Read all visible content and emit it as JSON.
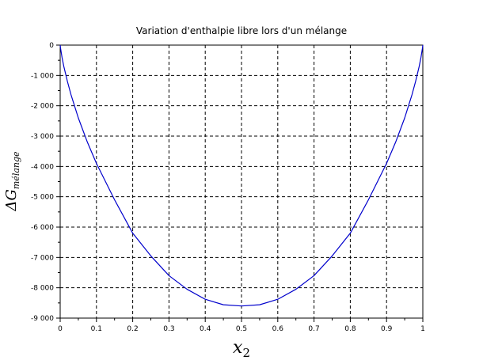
{
  "chart_data": {
    "type": "line",
    "title": "Variation d'enthalpie libre lors d'un mélange",
    "xlabel_main": "x",
    "xlabel_sub": "2",
    "ylabel_main": "ΔG",
    "ylabel_sub": "mélange",
    "xlim": [
      0,
      1
    ],
    "ylim": [
      -9000,
      0
    ],
    "x_ticks": [
      {
        "value": 0,
        "label": "0"
      },
      {
        "value": 0.1,
        "label": "0.1"
      },
      {
        "value": 0.2,
        "label": "0.2"
      },
      {
        "value": 0.3,
        "label": "0.3"
      },
      {
        "value": 0.4,
        "label": "0.4"
      },
      {
        "value": 0.5,
        "label": "0.5"
      },
      {
        "value": 0.6,
        "label": "0.6"
      },
      {
        "value": 0.7,
        "label": "0.7"
      },
      {
        "value": 0.8,
        "label": "0.8"
      },
      {
        "value": 0.9,
        "label": "0.9"
      },
      {
        "value": 1,
        "label": "1"
      }
    ],
    "y_ticks": [
      {
        "value": 0,
        "label": "0"
      },
      {
        "value": -1000,
        "label": "-1 000"
      },
      {
        "value": -2000,
        "label": "-2 000"
      },
      {
        "value": -3000,
        "label": "-3 000"
      },
      {
        "value": -4000,
        "label": "-4 000"
      },
      {
        "value": -5000,
        "label": "-5 000"
      },
      {
        "value": -6000,
        "label": "-6 000"
      },
      {
        "value": -7000,
        "label": "-7 000"
      },
      {
        "value": -8000,
        "label": "-8 000"
      },
      {
        "value": -9000,
        "label": "-9 000"
      }
    ],
    "grid": true,
    "series": [
      {
        "color": "#0000cc",
        "x": [
          0,
          0.001,
          0.005,
          0.01,
          0.02,
          0.03,
          0.05,
          0.075,
          0.1,
          0.15,
          0.2,
          0.25,
          0.3,
          0.35,
          0.4,
          0.45,
          0.5,
          0.55,
          0.6,
          0.65,
          0.7,
          0.75,
          0.8,
          0.85,
          0.9,
          0.925,
          0.95,
          0.97,
          0.98,
          0.99,
          0.995,
          0.999,
          1
        ],
        "y": [
          0,
          -100,
          -400,
          -700,
          -1200,
          -1640,
          -2400,
          -3200,
          -3900,
          -5100,
          -6200,
          -6950,
          -7600,
          -8050,
          -8380,
          -8560,
          -8600,
          -8560,
          -8380,
          -8050,
          -7600,
          -6950,
          -6200,
          -5100,
          -3900,
          -3200,
          -2400,
          -1640,
          -1200,
          -700,
          -400,
          -100,
          0
        ]
      }
    ]
  },
  "colors": {
    "background": "#ffffff",
    "axis": "#000000",
    "grid": "#000000",
    "curve": "#0000cc"
  }
}
